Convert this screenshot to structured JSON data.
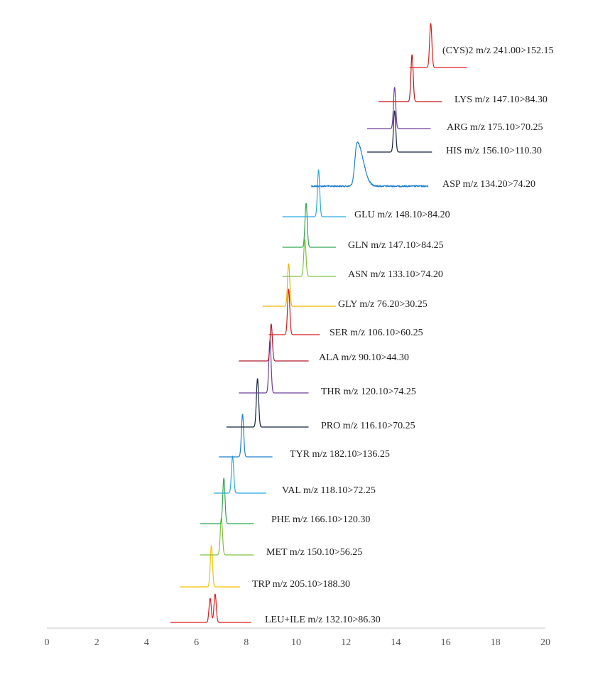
{
  "chart_data": {
    "type": "line",
    "title": "",
    "xlabel": "",
    "ylabel": "",
    "xlim": [
      0,
      20
    ],
    "x_ticks": [
      0,
      2,
      4,
      6,
      8,
      10,
      12,
      14,
      16,
      18,
      20
    ],
    "x_tick_labels": [
      "0",
      "2",
      "4",
      "6",
      "8",
      "10",
      "12",
      "14",
      "16",
      "18",
      "20"
    ],
    "grid": false,
    "legend": "none",
    "description_style": "stacked waterfall of extracted ion chromatograms, bottom to top by retention time",
    "series": [
      {
        "name": "LEU+ILE",
        "label": "LEU+ILE m/z 132.10>86.30",
        "color": "#e41a1c",
        "x_start": 4.95,
        "x_end": 8.2,
        "peaks": [
          [
            6.55,
            0.85
          ],
          [
            6.75,
            1.0
          ]
        ],
        "noise": 0
      },
      {
        "name": "TRP",
        "label": "TRP m/z 205.10>188.30",
        "color": "#f2c200",
        "x_start": 5.35,
        "x_end": 7.75,
        "peaks": [
          [
            6.6,
            1.0
          ]
        ],
        "noise": 0
      },
      {
        "name": "MET",
        "label": "MET m/z 150.10>56.25",
        "color": "#7fc240",
        "x_start": 6.15,
        "x_end": 8.3,
        "peaks": [
          [
            7.0,
            1.0
          ]
        ],
        "noise": 0
      },
      {
        "name": "PHE",
        "label": "PHE m/z 166.10>120.30",
        "color": "#2fa84f",
        "x_start": 6.15,
        "x_end": 8.3,
        "peaks": [
          [
            7.1,
            1.0
          ]
        ],
        "noise": 0
      },
      {
        "name": "VAL",
        "label": "VAL m/z 118.10>72.25",
        "color": "#29a8e0",
        "x_start": 6.7,
        "x_end": 8.8,
        "peaks": [
          [
            7.45,
            1.0
          ]
        ],
        "noise": 0
      },
      {
        "name": "TYR",
        "label": "TYR m/z 182.10>136.25",
        "color": "#1f7fd1",
        "x_start": 6.9,
        "x_end": 9.05,
        "peaks": [
          [
            7.85,
            1.0
          ]
        ],
        "noise": 0
      },
      {
        "name": "PRO",
        "label": "PRO m/z 116.10>70.25",
        "color": "#14233d",
        "x_start": 7.2,
        "x_end": 10.5,
        "peaks": [
          [
            8.45,
            1.0
          ]
        ],
        "noise": 0
      },
      {
        "name": "THR",
        "label": "THR m/z 120.10>74.25",
        "color": "#6a3d9a",
        "x_start": 7.7,
        "x_end": 10.5,
        "peaks": [
          [
            8.95,
            1.0
          ]
        ],
        "noise": 0
      },
      {
        "name": "ALA",
        "label": "ALA m/z 90.10>44.30",
        "color": "#b2182b",
        "x_start": 7.7,
        "x_end": 10.5,
        "peaks": [
          [
            9.0,
            1.0
          ]
        ],
        "noise": 0
      },
      {
        "name": "SER",
        "label": "SER m/z 106.10>60.25",
        "color": "#d7191c",
        "x_start": 8.9,
        "x_end": 10.95,
        "peaks": [
          [
            9.7,
            1.0
          ]
        ],
        "noise": 0
      },
      {
        "name": "GLY",
        "label": "GLY m/z 76.20>30.25",
        "color": "#f0b400",
        "x_start": 8.65,
        "x_end": 11.6,
        "peaks": [
          [
            9.7,
            1.0
          ]
        ],
        "noise": 0
      },
      {
        "name": "ASN",
        "label": "ASN m/z 133.10>74.20",
        "color": "#7fc240",
        "x_start": 9.45,
        "x_end": 11.6,
        "peaks": [
          [
            10.35,
            1.0
          ]
        ],
        "noise": 0
      },
      {
        "name": "GLN",
        "label": "GLN m/z 147.10>84.25",
        "color": "#2fa84f",
        "x_start": 9.45,
        "x_end": 11.6,
        "peaks": [
          [
            10.4,
            1.0
          ]
        ],
        "noise": 0
      },
      {
        "name": "GLU",
        "label": "GLU m/z 148.10>84.20",
        "color": "#29a8e0",
        "x_start": 9.45,
        "x_end": 12.0,
        "peaks": [
          [
            10.9,
            1.0
          ]
        ],
        "noise": 0
      },
      {
        "name": "ASP",
        "label": "ASP m/z 134.20>74.20",
        "color": "#1f7fd1",
        "x_start": 10.6,
        "x_end": 15.3,
        "peaks": [
          [
            12.45,
            1.0
          ]
        ],
        "noise": 1
      },
      {
        "name": "HIS",
        "label": "HIS m/z 156.10>110.30",
        "color": "#14233d",
        "x_start": 12.85,
        "x_end": 15.45,
        "peaks": [
          [
            13.95,
            1.0
          ]
        ],
        "noise": 0
      },
      {
        "name": "ARG",
        "label": "ARG m/z 175.10>70.25",
        "color": "#6a3d9a",
        "x_start": 12.85,
        "x_end": 15.4,
        "peaks": [
          [
            13.95,
            1.0
          ]
        ],
        "noise": 0
      },
      {
        "name": "LYS",
        "label": "LYS m/z 147.10>84.30",
        "color": "#c0151b",
        "x_start": 13.3,
        "x_end": 15.85,
        "peaks": [
          [
            14.65,
            1.0
          ]
        ],
        "noise": 0
      },
      {
        "name": "(CYS)2",
        "label": "(CYS)2 m/z 241.00>152.15",
        "color": "#e41a1c",
        "x_start": 14.55,
        "x_end": 16.85,
        "peaks": [
          [
            15.4,
            1.0
          ]
        ],
        "noise": 0
      }
    ]
  }
}
